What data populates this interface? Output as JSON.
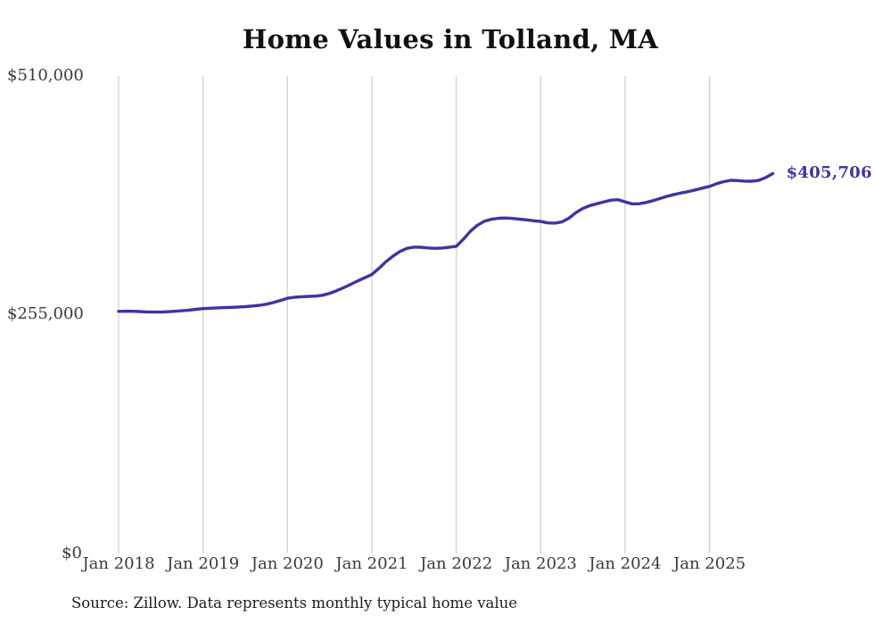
{
  "header": {
    "title": "Home Values in Tolland, MA"
  },
  "footer": {
    "source_note": "Source: Zillow. Data represents monthly typical home value"
  },
  "colors": {
    "line": "#3c35a4",
    "grid": "#d4d4d4",
    "title_text": "#111111",
    "axis_text": "#3a3a3a",
    "source_text": "#1d1d1d",
    "background": "#ffffff"
  },
  "chart_data": {
    "type": "line",
    "title": "Home Values in Tolland, MA",
    "xlabel": "",
    "ylabel": "",
    "ylim": [
      0,
      510000
    ],
    "grid": "vertical-only",
    "legend": "none",
    "y_tick_labels": [
      "$510,000",
      "$255,000",
      "$0"
    ],
    "y_tick_values": [
      510000,
      255000,
      0
    ],
    "x_tick_labels": [
      "Jan 2018",
      "Jan 2019",
      "Jan 2020",
      "Jan 2021",
      "Jan 2022",
      "Jan 2023",
      "Jan 2024",
      "Jan 2025"
    ],
    "last_point_label": "$405,706",
    "last_value": 405706,
    "x": [
      "2018-01",
      "2018-02",
      "2018-03",
      "2018-04",
      "2018-05",
      "2018-06",
      "2018-07",
      "2018-08",
      "2018-09",
      "2018-10",
      "2018-11",
      "2018-12",
      "2019-01",
      "2019-02",
      "2019-03",
      "2019-04",
      "2019-05",
      "2019-06",
      "2019-07",
      "2019-08",
      "2019-09",
      "2019-10",
      "2019-11",
      "2019-12",
      "2020-01",
      "2020-02",
      "2020-03",
      "2020-04",
      "2020-05",
      "2020-06",
      "2020-07",
      "2020-08",
      "2020-09",
      "2020-10",
      "2020-11",
      "2020-12",
      "2021-01",
      "2021-02",
      "2021-03",
      "2021-04",
      "2021-05",
      "2021-06",
      "2021-07",
      "2021-08",
      "2021-09",
      "2021-10",
      "2021-11",
      "2021-12",
      "2022-01",
      "2022-02",
      "2022-03",
      "2022-04",
      "2022-05",
      "2022-06",
      "2022-07",
      "2022-08",
      "2022-09",
      "2022-10",
      "2022-11",
      "2022-12",
      "2023-01",
      "2023-02",
      "2023-03",
      "2023-04",
      "2023-05",
      "2023-06",
      "2023-07",
      "2023-08",
      "2023-09",
      "2023-10",
      "2023-11",
      "2023-12",
      "2024-01",
      "2024-02",
      "2024-03",
      "2024-04",
      "2024-05",
      "2024-06",
      "2024-07",
      "2024-08",
      "2024-09",
      "2024-10",
      "2024-11",
      "2024-12",
      "2025-01",
      "2025-02",
      "2025-03",
      "2025-04",
      "2025-05",
      "2025-06",
      "2025-07",
      "2025-08",
      "2025-09",
      "2025-10"
    ],
    "series": [
      {
        "name": "Typical home value",
        "values": [
          258500,
          258700,
          258600,
          258300,
          258000,
          257800,
          257800,
          258100,
          258600,
          259200,
          259900,
          260700,
          261500,
          261900,
          262200,
          262500,
          262800,
          263200,
          263600,
          264200,
          265000,
          266200,
          268000,
          270200,
          272500,
          273600,
          274200,
          274500,
          274800,
          275800,
          277800,
          280600,
          283900,
          287400,
          291000,
          294500,
          298000,
          304500,
          311500,
          317500,
          322500,
          325800,
          327200,
          327000,
          326200,
          325800,
          326200,
          327000,
          328000,
          335500,
          344000,
          350500,
          354800,
          356900,
          358000,
          358200,
          357800,
          357000,
          356200,
          355300,
          354500,
          353000,
          352800,
          354000,
          358000,
          364000,
          368500,
          371500,
          373500,
          375500,
          377300,
          377800,
          375500,
          373300,
          373500,
          374800,
          376800,
          379200,
          381500,
          383400,
          385000,
          386500,
          388300,
          390200,
          392000,
          394800,
          397000,
          398500,
          398200,
          397600,
          397500,
          398400,
          401500,
          405706
        ]
      }
    ]
  }
}
